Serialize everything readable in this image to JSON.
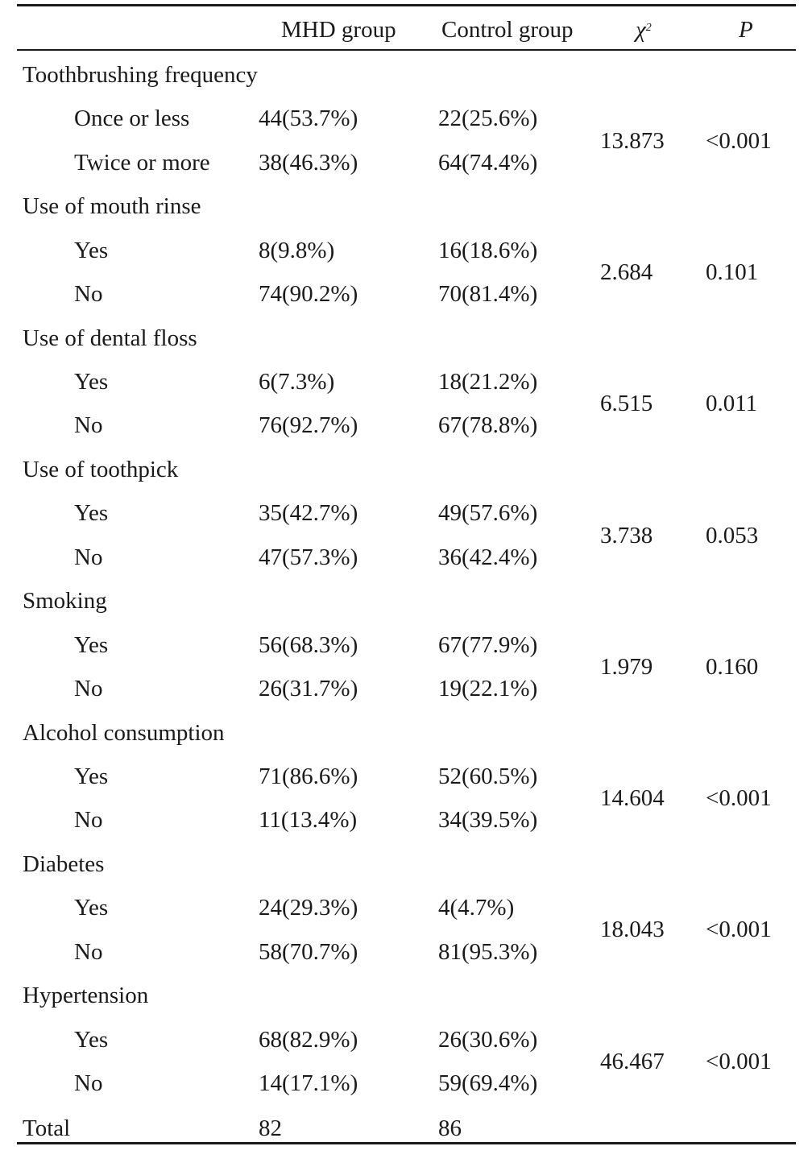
{
  "table": {
    "headers": {
      "group1": "MHD group",
      "group2": "Control group",
      "chi": "χ",
      "chi_sup": "2",
      "p": "P"
    },
    "sections": [
      {
        "title": "Toothbrushing frequency",
        "chi2": "13.873",
        "p": "<0.001",
        "rows": [
          {
            "label": "Once or less",
            "mhd": "44(53.7%)",
            "control": "22(25.6%)"
          },
          {
            "label": "Twice or more",
            "mhd": "38(46.3%)",
            "control": "64(74.4%)"
          }
        ]
      },
      {
        "title": "Use of mouth rinse",
        "chi2": "2.684",
        "p": "0.101",
        "rows": [
          {
            "label": "Yes",
            "mhd": "8(9.8%)",
            "control": "16(18.6%)"
          },
          {
            "label": "No",
            "mhd": "74(90.2%)",
            "control": "70(81.4%)"
          }
        ]
      },
      {
        "title": "Use of dental floss",
        "chi2": "6.515",
        "p": "0.011",
        "rows": [
          {
            "label": "Yes",
            "mhd": "6(7.3%)",
            "control": "18(21.2%)"
          },
          {
            "label": "No",
            "mhd": "76(92.7%)",
            "control": "67(78.8%)"
          }
        ]
      },
      {
        "title": "Use of toothpick",
        "chi2": "3.738",
        "p": "0.053",
        "rows": [
          {
            "label": "Yes",
            "mhd": "35(42.7%)",
            "control": "49(57.6%)"
          },
          {
            "label": "No",
            "mhd": "47(57.3%)",
            "control": "36(42.4%)"
          }
        ]
      },
      {
        "title": "Smoking",
        "chi2": "1.979",
        "p": "0.160",
        "rows": [
          {
            "label": "Yes",
            "mhd": "56(68.3%)",
            "control": "67(77.9%)"
          },
          {
            "label": "No",
            "mhd": "26(31.7%)",
            "control": "19(22.1%)"
          }
        ]
      },
      {
        "title": "Alcohol consumption",
        "chi2": "14.604",
        "p": "<0.001",
        "rows": [
          {
            "label": "Yes",
            "mhd": "71(86.6%)",
            "control": "52(60.5%)"
          },
          {
            "label": "No",
            "mhd": "11(13.4%)",
            "control": "34(39.5%)"
          }
        ]
      },
      {
        "title": "Diabetes",
        "chi2": "18.043",
        "p": "<0.001",
        "rows": [
          {
            "label": "Yes",
            "mhd": "24(29.3%)",
            "control": "4(4.7%)"
          },
          {
            "label": "No",
            "mhd": "58(70.7%)",
            "control": "81(95.3%)"
          }
        ]
      },
      {
        "title": "Hypertension",
        "chi2": "46.467",
        "p": "<0.001",
        "rows": [
          {
            "label": "Yes",
            "mhd": "68(82.9%)",
            "control": "26(30.6%)"
          },
          {
            "label": "No",
            "mhd": "14(17.1%)",
            "control": "59(69.4%)"
          }
        ]
      }
    ],
    "total": {
      "label": "Total",
      "mhd": "82",
      "control": "86"
    }
  }
}
